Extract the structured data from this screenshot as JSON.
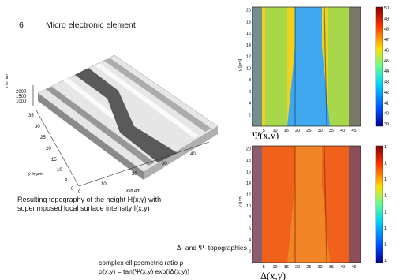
{
  "heading": {
    "number": "6",
    "title": "Micro electronic element"
  },
  "topography": {
    "z_label": "z in nm",
    "y_label": "y in µm",
    "x_label": "x in µm",
    "z_ticks": [
      "2000",
      "1500",
      "1000"
    ],
    "y_ticks": [
      "35",
      "30",
      "25",
      "20",
      "15",
      "10",
      "5",
      "0"
    ],
    "x_ticks": [
      "0",
      "10",
      "20",
      "30",
      "40"
    ],
    "caption_lines": [
      "Resulting  topography of the height H(x,y) with",
      "superimposed local surface intensity   I(x,y)"
    ]
  },
  "psi_map": {
    "label": "Ψ(x,y)",
    "y_axis_label": "y [µm]",
    "x_ticks": [
      "5",
      "10",
      "15",
      "20",
      "25",
      "30",
      "35",
      "40",
      "45"
    ],
    "y_ticks": [
      "2",
      "4",
      "6",
      "8",
      "10",
      "12",
      "14",
      "16",
      "18",
      "20"
    ],
    "colorbar_ticks": [
      "50",
      "49",
      "48",
      "47",
      "46",
      "45",
      "44",
      "43",
      "42",
      "41",
      "40",
      "39"
    ]
  },
  "delta_map": {
    "label": "Δ(x,y)",
    "y_axis_label": "y [µm]",
    "x_ticks": [
      "5",
      "10",
      "15",
      "20",
      "25",
      "30",
      "35",
      "40",
      "45"
    ],
    "y_ticks": [
      "2",
      "4",
      "6",
      "8",
      "10",
      "12",
      "14",
      "16",
      "18",
      "20"
    ],
    "colorbar_ticks": [
      "1",
      "1",
      "1",
      "1",
      "1",
      "1",
      "1",
      "1"
    ]
  },
  "topographies_title": "Δ- and Ψ- topographies",
  "ratio_lines": [
    "complex ellipsometric ratio ρ",
    "ρ(x,y) = tan(Ψ(x,y) exp(iΔ(x,y))"
  ],
  "colors": {
    "psi_background": "#f0d21e",
    "psi_channel": "#3fa8ee",
    "delta_background": "#f0621c",
    "delta_channel": "#f0a030",
    "strip_dark": "#2a3a9a"
  }
}
